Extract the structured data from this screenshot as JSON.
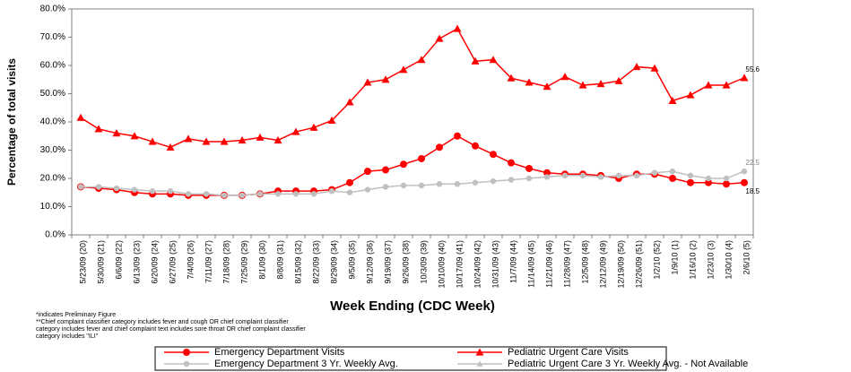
{
  "chart_data": {
    "type": "line",
    "y_label": "Percentage of total visits",
    "x_label": "Week Ending (CDC Week)",
    "categories": [
      "5/23/09 (20)",
      "5/30/09 (21)",
      "6/6/09 (22)",
      "6/13/09 (23)",
      "6/20/09 (24)",
      "6/27/09 (25)",
      "7/4/09 (26)",
      "7/11/09 (27)",
      "7/18/09 (28)",
      "7/25/09 (29)",
      "8/1/09 (30)",
      "8/8/09 (31)",
      "8/15/09 (32)",
      "8/22/09 (33)",
      "8/29/09 (34)",
      "9/5/09 (35)",
      "9/12/09 (36)",
      "9/19/09 (37)",
      "9/26/09 (38)",
      "10/3/09 (39)",
      "10/10/09 (40)",
      "10/17/09 (41)",
      "10/24/09 (42)",
      "10/31/09 (43)",
      "11/7/09 (44)",
      "11/14/09 (45)",
      "11/21/09 (46)",
      "11/28/09 (47)",
      "12/5/09 (48)",
      "12/12/09 (49)",
      "12/19/09 (50)",
      "12/26/09 (51)",
      "1/2/10 (52)",
      "1/9/10 (1)",
      "1/16/10 (2)",
      "1/23/10 (3)",
      "1/30/10 (4)",
      "2/6/10 (5)"
    ],
    "series": [
      {
        "name": "Emergency Department Visits",
        "color": "#ff0000",
        "marker": "circle",
        "values": [
          17,
          16.5,
          16,
          15,
          14.5,
          14.5,
          14,
          14,
          14,
          14,
          14.5,
          15.5,
          15.5,
          15.5,
          16,
          18.5,
          22.5,
          23,
          25,
          27,
          31,
          35,
          31.5,
          28.5,
          25.5,
          23.5,
          22,
          21.5,
          21.5,
          21,
          20,
          21.5,
          21.5,
          20,
          18.5,
          18.5,
          18,
          18.5
        ]
      },
      {
        "name": "Pediatric Urgent Care Visits",
        "color": "#ff0000",
        "marker": "triangle",
        "values": [
          41.5,
          37.5,
          36,
          35,
          33,
          31,
          34,
          33,
          33,
          33.5,
          34.5,
          33.5,
          36.5,
          38,
          40.5,
          47,
          54,
          55,
          58.5,
          62,
          69.5,
          73,
          61.5,
          62,
          55.5,
          54,
          52.5,
          56,
          53,
          53.5,
          54.5,
          59.5,
          59,
          47.5,
          49.5,
          53,
          53,
          55.6
        ]
      },
      {
        "name": "Emergency Department 3 Yr. Weekly Avg.",
        "color": "#c0c0c0",
        "marker": "circle",
        "values": [
          17,
          17,
          16.5,
          16,
          15.5,
          15.5,
          14.5,
          14.5,
          14,
          14,
          14.5,
          14.5,
          14.5,
          14.5,
          15.5,
          15,
          16,
          17,
          17.5,
          17.5,
          18,
          18,
          18.5,
          19,
          19.5,
          20,
          20.5,
          21,
          21,
          20.5,
          21,
          21,
          22,
          22.5,
          21,
          20,
          20,
          22.5
        ]
      },
      {
        "name": "Pediatric Urgent Care 3 Yr. Weekly Avg. - Not Available",
        "color": "#c0c0c0",
        "marker": "triangle",
        "values": [
          null,
          null,
          null,
          null,
          null,
          null,
          null,
          null,
          null,
          null,
          null,
          null,
          null,
          null,
          null,
          null,
          null,
          null,
          null,
          null,
          null,
          null,
          null,
          null,
          null,
          null,
          null,
          null,
          null,
          null,
          null,
          null,
          null,
          null,
          null,
          null,
          null,
          null
        ]
      }
    ],
    "ylim": [
      0,
      80
    ],
    "yticks": [
      {
        "value": 0,
        "label": "0.0%"
      },
      {
        "value": 10,
        "label": "10.0%"
      },
      {
        "value": 20,
        "label": "20.0%"
      },
      {
        "value": 30,
        "label": "30.0%"
      },
      {
        "value": 40,
        "label": "40.0%"
      },
      {
        "value": 50,
        "label": "50.0%"
      },
      {
        "value": 60,
        "label": "60.0%"
      },
      {
        "value": 70,
        "label": "70.0%"
      },
      {
        "value": 80,
        "label": "80.0%"
      }
    ],
    "notes": [
      "*indicates Preliminary Figure",
      "**Chief complaint classifier category includes fever and cough OR chief complaint classifier",
      "category includes fever and chief complaint text includes sore throat OR chief complaint classifier",
      "category includes \"ILI\""
    ]
  }
}
